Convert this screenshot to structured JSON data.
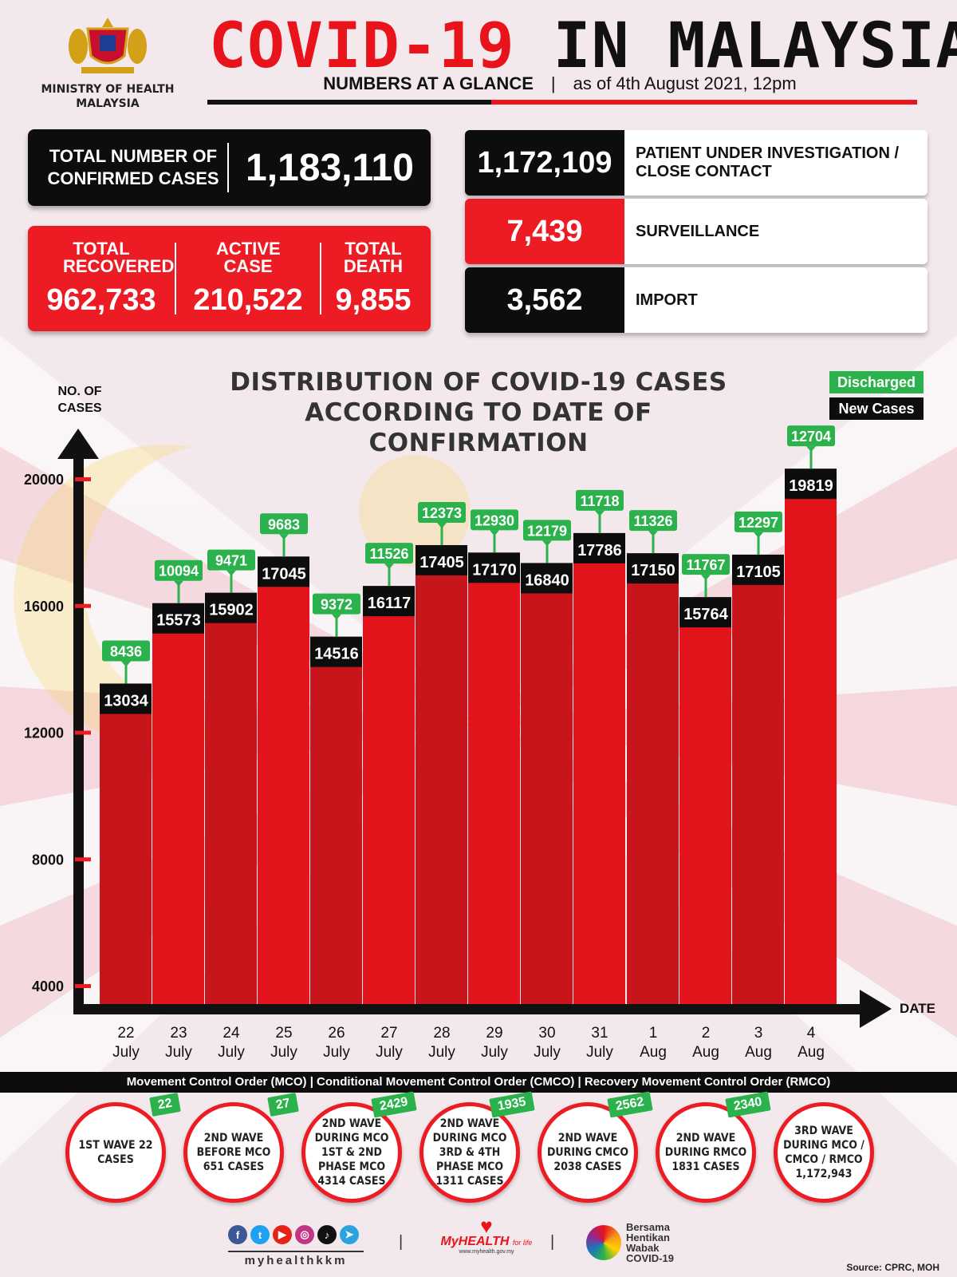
{
  "header": {
    "ministry": "MINISTRY OF HEALTH MALAYSIA",
    "title_red": "COVID-19",
    "title_black": "IN MALAYSIA",
    "subtitle_left": "NUMBERS AT A GLANCE",
    "subtitle_sep": "|",
    "subtitle_right": "as of 4th August 2021, 12pm"
  },
  "stats": {
    "confirmed_label": "TOTAL NUMBER OF CONFIRMED CASES",
    "confirmed_value": "1,183,110",
    "recovered_label": "TOTAL RECOVERED",
    "recovered_value": "962,733",
    "active_label": "ACTIVE CASE",
    "active_value": "210,522",
    "death_label": "TOTAL DEATH",
    "death_value": "9,855"
  },
  "categories": [
    {
      "value": "1,172,109",
      "label": "PATIENT UNDER INVESTIGATION / CLOSE CONTACT",
      "color": "#0d0d0d"
    },
    {
      "value": "7,439",
      "label": "SURVEILLANCE",
      "color": "#ed1c24"
    },
    {
      "value": "3,562",
      "label": "IMPORT",
      "color": "#0d0d0d"
    }
  ],
  "chart_data": {
    "type": "bar",
    "title": "DISTRIBUTION OF COVID-19 CASES ACCORDING TO DATE OF CONFIRMATION",
    "ylabel": "NO. OF CASES",
    "xlabel": "DATE",
    "yticks": [
      4000,
      8000,
      12000,
      16000,
      20000
    ],
    "ylim": [
      4000,
      20000
    ],
    "categories": [
      "22 July",
      "23 July",
      "24 July",
      "25 July",
      "26 July",
      "27 July",
      "28 July",
      "29 July",
      "30 July",
      "31 July",
      "1 Aug",
      "2 Aug",
      "3 Aug",
      "4 Aug"
    ],
    "x_top": [
      "22",
      "23",
      "24",
      "25",
      "26",
      "27",
      "28",
      "29",
      "30",
      "31",
      "1",
      "2",
      "3",
      "4"
    ],
    "x_bottom": [
      "July",
      "July",
      "July",
      "July",
      "July",
      "July",
      "July",
      "July",
      "July",
      "July",
      "Aug",
      "Aug",
      "Aug",
      "Aug"
    ],
    "series": [
      {
        "name": "New Cases",
        "color": "#0d0d0d",
        "values": [
          13034,
          15573,
          15902,
          17045,
          14516,
          16117,
          17405,
          17170,
          16840,
          17786,
          17150,
          15764,
          17105,
          19819
        ]
      },
      {
        "name": "Discharged",
        "color": "#2bb24c",
        "values": [
          8436,
          10094,
          9471,
          9683,
          9372,
          11526,
          12373,
          12930,
          12179,
          11718,
          11326,
          11767,
          12297,
          12704
        ]
      }
    ],
    "bar_color": "#ed1c24",
    "legend_position": "top-right",
    "grid": false
  },
  "mco": {
    "banner": "Movement Control Order (MCO) | Conditional Movement Control Order (CMCO) | Recovery Movement Control Order (RMCO)",
    "waves": [
      {
        "text": "1ST WAVE 22 CASES",
        "badge": "22"
      },
      {
        "text": "2ND WAVE BEFORE MCO 651 CASES",
        "badge": "27"
      },
      {
        "text": "2ND WAVE DURING MCO 1ST & 2ND PHASE MCO 4314 CASES",
        "badge": "2429"
      },
      {
        "text": "2ND WAVE DURING MCO 3RD & 4TH PHASE MCO 1311 CASES",
        "badge": "1935"
      },
      {
        "text": "2ND WAVE DURING CMCO 2038 CASES",
        "badge": "2562"
      },
      {
        "text": "2ND WAVE DURING RMCO 1831 CASES",
        "badge": "2340"
      },
      {
        "text": "3RD WAVE DURING MCO / CMCO / RMCO 1,172,943",
        "badge": ""
      }
    ]
  },
  "footer": {
    "handle": "myhealthkkm",
    "myhealth": "MyHEALTH",
    "myhealth_tag": "for life",
    "myhealth_url": "www.myhealth.gov.my",
    "bersama": "Bersama Hentikan Wabak COVID-19",
    "source": "Source: CPRC, MOH",
    "social_icons": [
      "facebook-icon",
      "twitter-icon",
      "youtube-icon",
      "instagram-icon",
      "tiktok-icon",
      "telegram-icon"
    ]
  }
}
